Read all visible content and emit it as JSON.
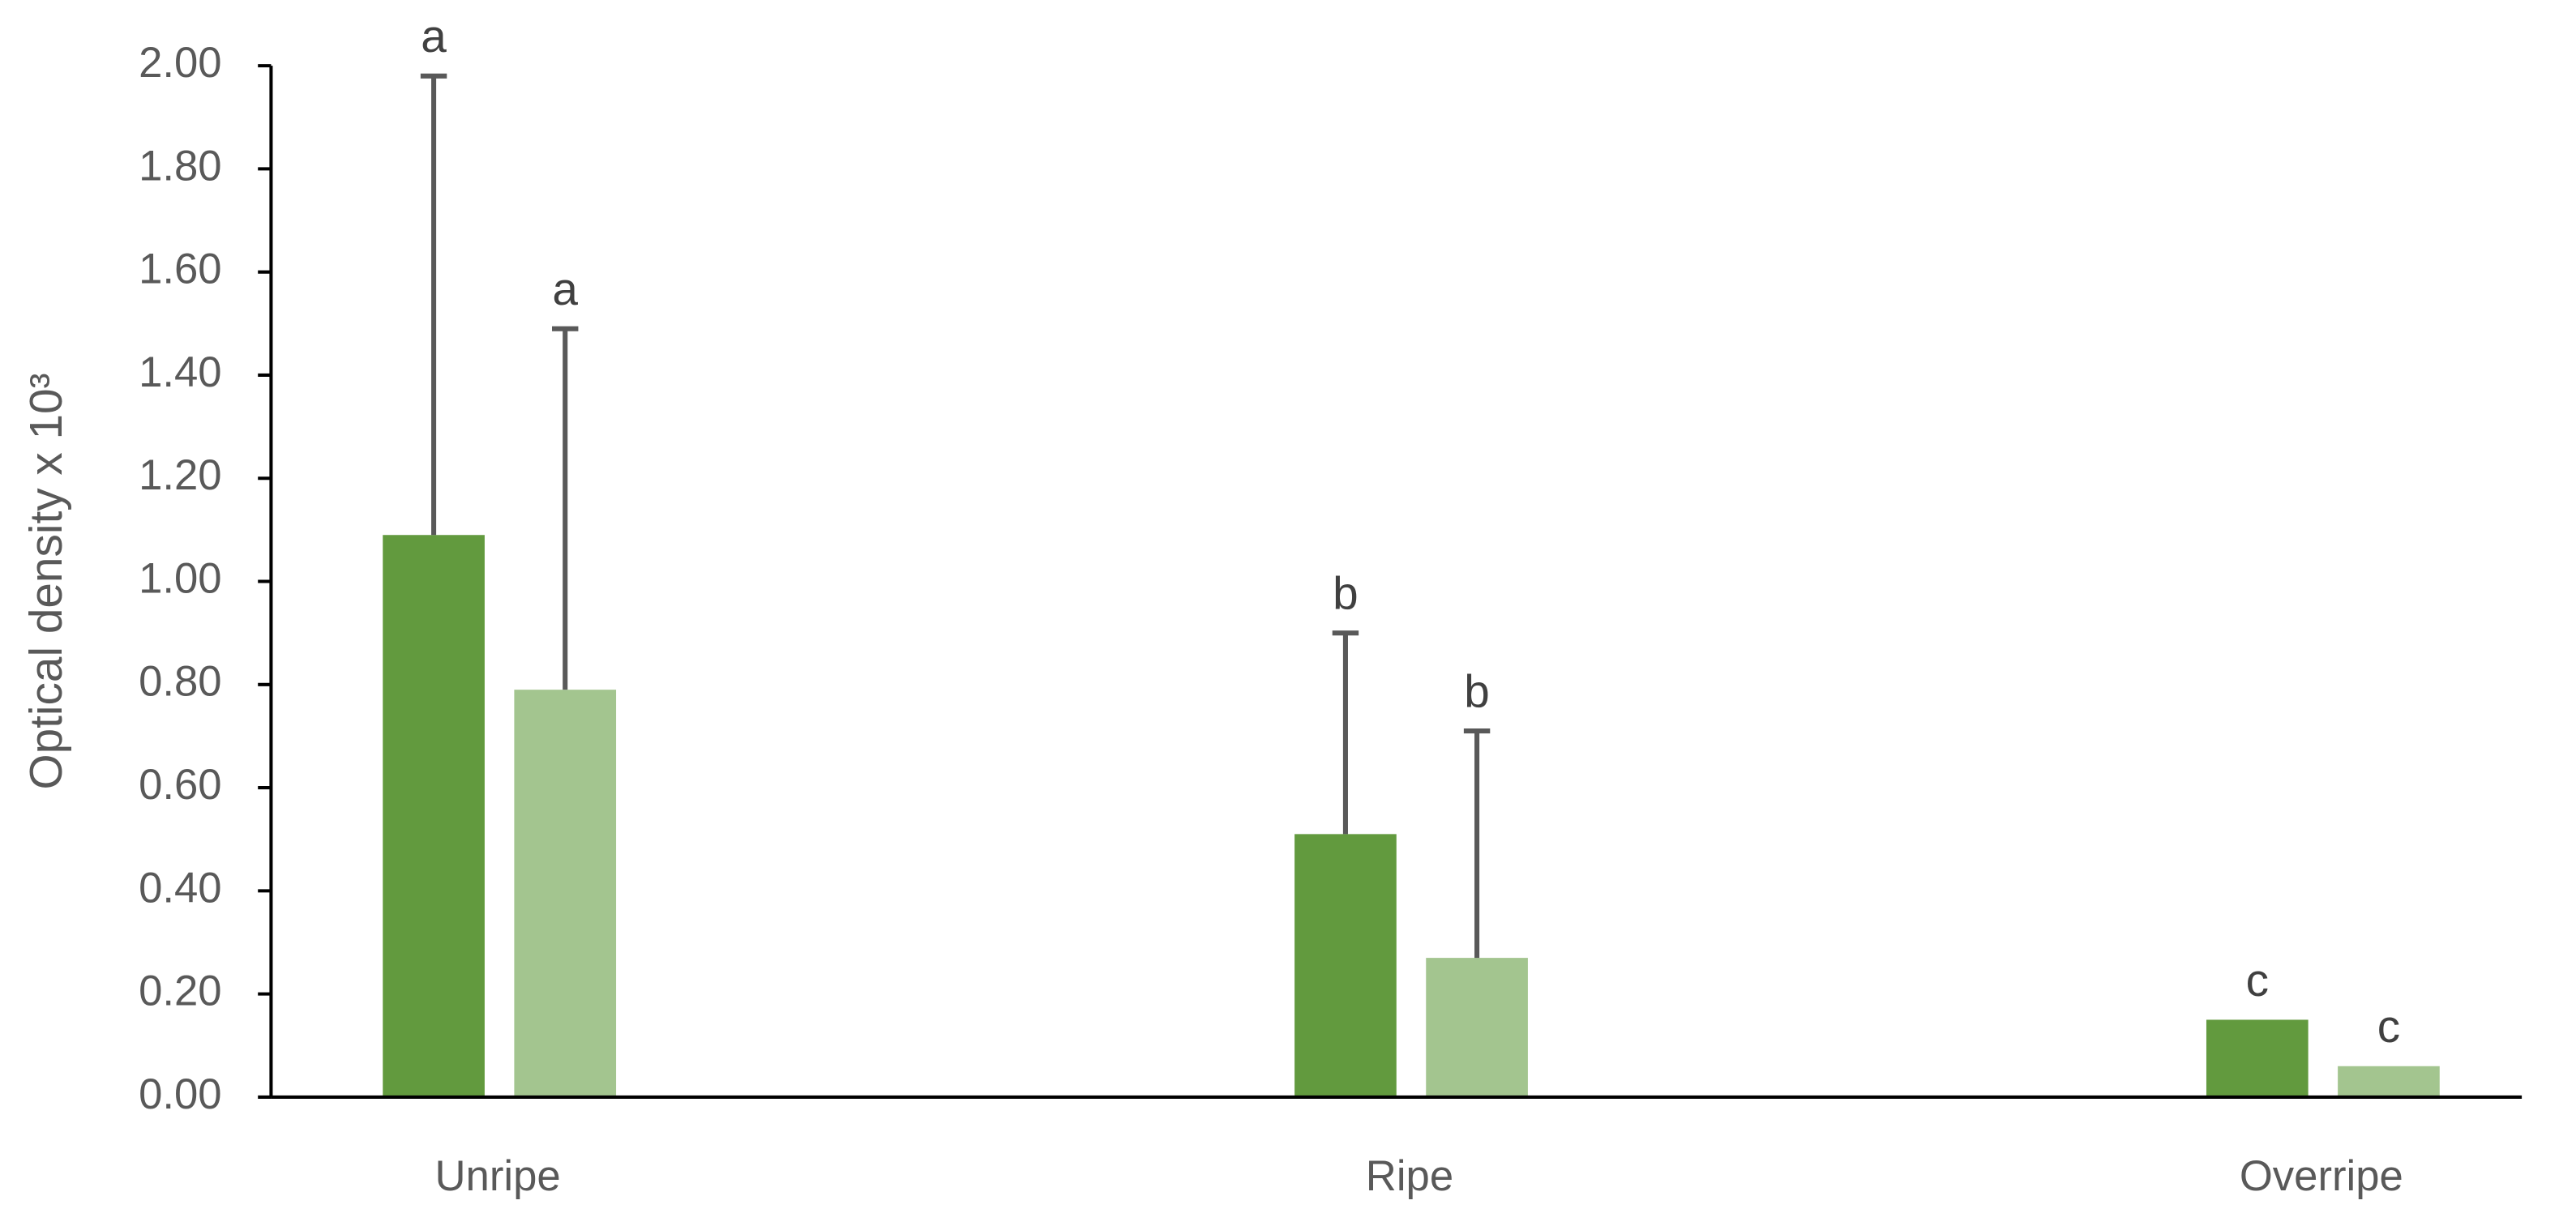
{
  "chart_data": {
    "type": "bar",
    "ylabel": "Optical density x 10³",
    "categories": [
      "Unripe",
      "Ripe",
      "Overripe"
    ],
    "series": [
      {
        "color": "#629a3e",
        "values": [
          1.09,
          0.51,
          0.15
        ],
        "errors": [
          0.89,
          0.39,
          null
        ],
        "letters": [
          "a",
          "b",
          "c"
        ]
      },
      {
        "color": "#a3c58f",
        "values": [
          0.79,
          0.27,
          0.06
        ],
        "errors": [
          0.7,
          0.44,
          null
        ],
        "letters": [
          "a",
          "b",
          "c"
        ]
      }
    ],
    "ylim": [
      0,
      2
    ],
    "yticks": [
      {
        "value": 0,
        "label": "0.00"
      },
      {
        "value": 0.2,
        "label": "0.20"
      },
      {
        "value": 0.4,
        "label": "0.40"
      },
      {
        "value": 0.6,
        "label": "0.60"
      },
      {
        "value": 0.8,
        "label": "0.80"
      },
      {
        "value": 1,
        "label": "1.00"
      },
      {
        "value": 1.2,
        "label": "1.20"
      },
      {
        "value": 1.4,
        "label": "1.40"
      },
      {
        "value": 1.6,
        "label": "1.60"
      },
      {
        "value": 1.8,
        "label": "1.80"
      },
      {
        "value": 2,
        "label": "2.00"
      }
    ],
    "grid": false
  }
}
